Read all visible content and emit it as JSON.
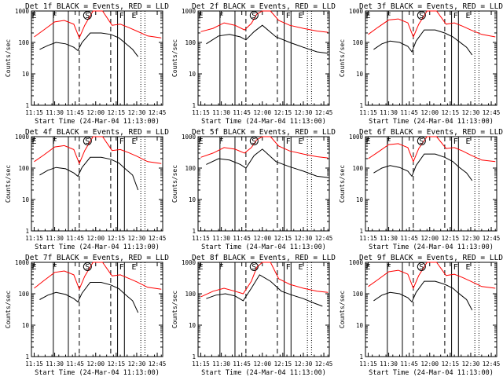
{
  "chart_data": [
    {
      "type": "line",
      "title": "Det 1f BLACK = Events, RED = LLD",
      "ylabel": "Counts/sec",
      "xlabel": "Start Time (24-Mar-04 11:13:00)",
      "y_scale": "log",
      "ylim": [
        1,
        1000
      ],
      "x_ticks": [
        "11:15",
        "11:30",
        "11:45",
        "12:00",
        "12:15",
        "12:30",
        "12:45"
      ],
      "y_ticks": [
        "1",
        "10",
        "100",
        "1000"
      ],
      "markers": [
        "E",
        "F",
        "S",
        "F",
        "E"
      ],
      "series": [
        {
          "color": "#000000",
          "x": [
            "11:19",
            "11:25",
            "11:31",
            "11:38",
            "11:44",
            "11:47",
            "11:50",
            "11:56",
            "12:04",
            "12:11",
            "12:17",
            "12:21",
            "12:27",
            "12:31"
          ],
          "values": [
            60,
            80,
            100,
            90,
            70,
            55,
            100,
            200,
            200,
            180,
            140,
            100,
            60,
            35
          ]
        },
        {
          "color": "#ff0000",
          "x": [
            "11:15",
            "11:22",
            "11:30",
            "11:37",
            "11:44",
            "11:48",
            "11:52",
            "11:58",
            "12:05",
            "12:12",
            "12:18",
            "12:24",
            "12:30",
            "12:38",
            "12:48"
          ],
          "values": [
            150,
            250,
            450,
            500,
            380,
            140,
            350,
            1000,
            1000,
            350,
            380,
            300,
            230,
            160,
            140
          ]
        }
      ]
    },
    {
      "type": "line",
      "title": "Det 2f BLACK = Events, RED = LLD",
      "ylabel": "Counts/sec",
      "xlabel": "Start Time (24-Mar-04 11:13:00)",
      "y_scale": "log",
      "ylim": [
        1,
        1000
      ],
      "x_ticks": [
        "11:15",
        "11:30",
        "11:45",
        "12:00",
        "12:15",
        "12:30",
        "12:45"
      ],
      "y_ticks": [
        "1",
        "10",
        "100",
        "1000"
      ],
      "markers": [
        "E",
        "F",
        "S",
        "F",
        "E"
      ],
      "series": [
        {
          "color": "#000000",
          "x": [
            "11:19",
            "11:28",
            "11:36",
            "11:44",
            "11:48",
            "11:54",
            "12:00",
            "12:10",
            "12:20",
            "12:30",
            "12:40",
            "12:48"
          ],
          "values": [
            90,
            160,
            180,
            150,
            120,
            220,
            350,
            150,
            100,
            70,
            50,
            45
          ]
        },
        {
          "color": "#ff0000",
          "x": [
            "11:15",
            "11:24",
            "11:32",
            "11:40",
            "11:47",
            "11:52",
            "11:56",
            "12:00",
            "12:06",
            "12:12",
            "12:20",
            "12:30",
            "12:40",
            "12:48"
          ],
          "values": [
            220,
            280,
            420,
            350,
            250,
            400,
            800,
            1000,
            1000,
            500,
            350,
            280,
            230,
            210
          ]
        }
      ]
    },
    {
      "type": "line",
      "title": "Det 3f BLACK = Events, RED = LLD",
      "ylabel": "Counts/sec",
      "xlabel": "Start Time (24-Mar-04 11:13:00)",
      "y_scale": "log",
      "ylim": [
        1,
        1000
      ],
      "x_ticks": [
        "11:15",
        "11:30",
        "11:45",
        "12:00",
        "12:15",
        "12:30",
        "12:45"
      ],
      "y_ticks": [
        "1",
        "10",
        "100",
        "1000"
      ],
      "markers": [
        "E",
        "F",
        "S",
        "F",
        "E"
      ],
      "series": [
        {
          "color": "#000000",
          "x": [
            "11:19",
            "11:25",
            "11:31",
            "11:38",
            "11:44",
            "11:47",
            "11:50",
            "11:56",
            "12:04",
            "12:11",
            "12:17",
            "12:21",
            "12:27",
            "12:31"
          ],
          "values": [
            60,
            90,
            110,
            100,
            75,
            50,
            110,
            250,
            250,
            200,
            150,
            110,
            70,
            40
          ]
        },
        {
          "color": "#ff0000",
          "x": [
            "11:15",
            "11:22",
            "11:30",
            "11:37",
            "11:44",
            "11:48",
            "11:52",
            "11:58",
            "12:05",
            "12:12",
            "12:18",
            "12:24",
            "12:30",
            "12:38",
            "12:48"
          ],
          "values": [
            180,
            300,
            520,
            560,
            420,
            150,
            380,
            1000,
            1000,
            380,
            420,
            330,
            250,
            180,
            150
          ]
        }
      ]
    },
    {
      "type": "line",
      "title": "Det 4f BLACK = Events, RED = LLD",
      "ylabel": "Counts/sec",
      "xlabel": "Start Time (24-Mar-04 11:13:00)",
      "y_scale": "log",
      "ylim": [
        1,
        1000
      ],
      "x_ticks": [
        "11:15",
        "11:30",
        "11:45",
        "12:00",
        "12:15",
        "12:30",
        "12:45"
      ],
      "y_ticks": [
        "1",
        "10",
        "100",
        "1000"
      ],
      "markers": [
        "E",
        "F",
        "S",
        "F",
        "E"
      ],
      "series": [
        {
          "color": "#000000",
          "x": [
            "11:19",
            "11:25",
            "11:31",
            "11:38",
            "11:44",
            "11:47",
            "11:50",
            "11:56",
            "12:04",
            "12:11",
            "12:17",
            "12:21",
            "12:27",
            "12:31"
          ],
          "values": [
            60,
            85,
            105,
            95,
            70,
            55,
            105,
            220,
            220,
            190,
            145,
            100,
            60,
            20
          ]
        },
        {
          "color": "#ff0000",
          "x": [
            "11:15",
            "11:22",
            "11:30",
            "11:37",
            "11:44",
            "11:48",
            "11:52",
            "11:58",
            "12:05",
            "12:12",
            "12:18",
            "12:24",
            "12:30",
            "12:38",
            "12:48"
          ],
          "values": [
            160,
            260,
            470,
            520,
            390,
            140,
            360,
            1000,
            1000,
            360,
            390,
            310,
            240,
            160,
            140
          ]
        }
      ]
    },
    {
      "type": "line",
      "title": "Det 5f BLACK = Events, RED = LLD",
      "ylabel": "Counts/sec",
      "xlabel": "Start Time (24-Mar-04 11:13:00)",
      "y_scale": "log",
      "ylim": [
        1,
        1000
      ],
      "x_ticks": [
        "11:15",
        "11:30",
        "11:45",
        "12:00",
        "12:15",
        "12:30",
        "12:45"
      ],
      "y_ticks": [
        "1",
        "10",
        "100",
        "1000"
      ],
      "markers": [
        "E",
        "F",
        "S",
        "F",
        "E"
      ],
      "series": [
        {
          "color": "#000000",
          "x": [
            "11:19",
            "11:28",
            "11:36",
            "11:44",
            "11:48",
            "11:54",
            "12:00",
            "12:10",
            "12:20",
            "12:30",
            "12:40",
            "12:48"
          ],
          "values": [
            130,
            200,
            180,
            130,
            100,
            250,
            400,
            160,
            110,
            80,
            55,
            50
          ]
        },
        {
          "color": "#ff0000",
          "x": [
            "11:15",
            "11:24",
            "11:32",
            "11:40",
            "11:47",
            "11:52",
            "11:56",
            "12:00",
            "12:06",
            "12:12",
            "12:20",
            "12:30",
            "12:40",
            "12:48"
          ],
          "values": [
            220,
            300,
            450,
            400,
            300,
            450,
            800,
            1000,
            1000,
            500,
            350,
            280,
            230,
            210
          ]
        }
      ]
    },
    {
      "type": "line",
      "title": "Det 6f BLACK = Events, RED = LLD",
      "ylabel": "Counts/sec",
      "xlabel": "Start Time (24-Mar-04 11:13:00)",
      "y_scale": "log",
      "ylim": [
        1,
        1000
      ],
      "x_ticks": [
        "11:15",
        "11:30",
        "11:45",
        "12:00",
        "12:15",
        "12:30",
        "12:45"
      ],
      "y_ticks": [
        "1",
        "10",
        "100",
        "1000"
      ],
      "markers": [
        "E",
        "F",
        "S",
        "F",
        "E"
      ],
      "series": [
        {
          "color": "#000000",
          "x": [
            "11:19",
            "11:25",
            "11:31",
            "11:38",
            "11:44",
            "11:47",
            "11:50",
            "11:56",
            "12:04",
            "12:11",
            "12:17",
            "12:21",
            "12:27",
            "12:31"
          ],
          "values": [
            70,
            100,
            120,
            105,
            80,
            55,
            120,
            280,
            280,
            220,
            160,
            110,
            70,
            40
          ]
        },
        {
          "color": "#ff0000",
          "x": [
            "11:15",
            "11:22",
            "11:30",
            "11:37",
            "11:44",
            "11:48",
            "11:52",
            "11:58",
            "12:05",
            "12:12",
            "12:18",
            "12:24",
            "12:30",
            "12:38",
            "12:48"
          ],
          "values": [
            200,
            320,
            560,
            600,
            450,
            160,
            420,
            1000,
            1000,
            420,
            450,
            350,
            260,
            180,
            160
          ]
        }
      ]
    },
    {
      "type": "line",
      "title": "Det 7f BLACK = Events, RED = LLD",
      "ylabel": "Counts/sec",
      "xlabel": "Start Time (24-Mar-04 11:13:00)",
      "y_scale": "log",
      "ylim": [
        1,
        1000
      ],
      "x_ticks": [
        "11:15",
        "11:30",
        "11:45",
        "12:00",
        "12:15",
        "12:30",
        "12:45"
      ],
      "y_ticks": [
        "1",
        "10",
        "100",
        "1000"
      ],
      "markers": [
        "E",
        "F",
        "S",
        "F",
        "E"
      ],
      "series": [
        {
          "color": "#000000",
          "x": [
            "11:19",
            "11:25",
            "11:31",
            "11:38",
            "11:44",
            "11:47",
            "11:50",
            "11:56",
            "12:04",
            "12:11",
            "12:17",
            "12:21",
            "12:27",
            "12:31"
          ],
          "values": [
            65,
            90,
            110,
            95,
            70,
            55,
            105,
            230,
            230,
            190,
            145,
            100,
            60,
            25
          ]
        },
        {
          "color": "#ff0000",
          "x": [
            "11:15",
            "11:22",
            "11:30",
            "11:37",
            "11:44",
            "11:48",
            "11:52",
            "11:58",
            "12:05",
            "12:12",
            "12:18",
            "12:24",
            "12:30",
            "12:38",
            "12:48"
          ],
          "values": [
            150,
            260,
            480,
            530,
            400,
            140,
            360,
            1000,
            1000,
            370,
            400,
            310,
            240,
            160,
            140
          ]
        }
      ]
    },
    {
      "type": "line",
      "title": "Det 8f BLACK = Events, RED = LLD",
      "ylabel": "Counts/sec",
      "xlabel": "Start Time (24-Mar-04 11:13:00)",
      "y_scale": "log",
      "ylim": [
        1,
        1000
      ],
      "x_ticks": [
        "11:15",
        "11:30",
        "11:45",
        "12:00",
        "12:15",
        "12:30",
        "12:45"
      ],
      "y_ticks": [
        "1",
        "10",
        "100",
        "1000"
      ],
      "markers": [
        "E",
        "F",
        "S",
        "F",
        "E"
      ],
      "series": [
        {
          "color": "#000000",
          "x": [
            "11:19",
            "11:26",
            "11:33",
            "11:40",
            "11:46",
            "11:52",
            "11:58",
            "12:06",
            "12:14",
            "12:22",
            "12:30",
            "12:38",
            "12:44"
          ],
          "values": [
            70,
            90,
            100,
            85,
            60,
            150,
            400,
            250,
            120,
            90,
            70,
            50,
            40
          ]
        },
        {
          "color": "#ff0000",
          "x": [
            "11:15",
            "11:24",
            "11:32",
            "11:40",
            "11:46",
            "11:52",
            "11:56",
            "12:00",
            "12:06",
            "12:12",
            "12:20",
            "12:30",
            "12:40",
            "12:48"
          ],
          "values": [
            80,
            120,
            150,
            120,
            100,
            250,
            700,
            1000,
            1000,
            300,
            200,
            150,
            120,
            110
          ]
        }
      ]
    },
    {
      "type": "line",
      "title": "Det 9f BLACK = Events, RED = LLD",
      "ylabel": "Counts/sec",
      "xlabel": "Start Time (24-Mar-04 11:13:00)",
      "y_scale": "log",
      "ylim": [
        1,
        1000
      ],
      "x_ticks": [
        "11:15",
        "11:30",
        "11:45",
        "12:00",
        "12:15",
        "12:30",
        "12:45"
      ],
      "y_ticks": [
        "1",
        "10",
        "100",
        "1000"
      ],
      "markers": [
        "E",
        "F",
        "S",
        "F",
        "E"
      ],
      "series": [
        {
          "color": "#000000",
          "x": [
            "11:19",
            "11:25",
            "11:31",
            "11:38",
            "11:44",
            "11:47",
            "11:50",
            "11:56",
            "12:04",
            "12:11",
            "12:17",
            "12:21",
            "12:27",
            "12:31"
          ],
          "values": [
            60,
            90,
            110,
            100,
            75,
            55,
            110,
            250,
            250,
            200,
            150,
            105,
            65,
            30
          ]
        },
        {
          "color": "#ff0000",
          "x": [
            "11:15",
            "11:22",
            "11:30",
            "11:37",
            "11:44",
            "11:48",
            "11:52",
            "11:58",
            "12:05",
            "12:12",
            "12:18",
            "12:24",
            "12:30",
            "12:38",
            "12:48"
          ],
          "values": [
            170,
            280,
            500,
            560,
            420,
            150,
            380,
            1000,
            1000,
            380,
            420,
            330,
            250,
            170,
            150
          ]
        }
      ]
    }
  ]
}
